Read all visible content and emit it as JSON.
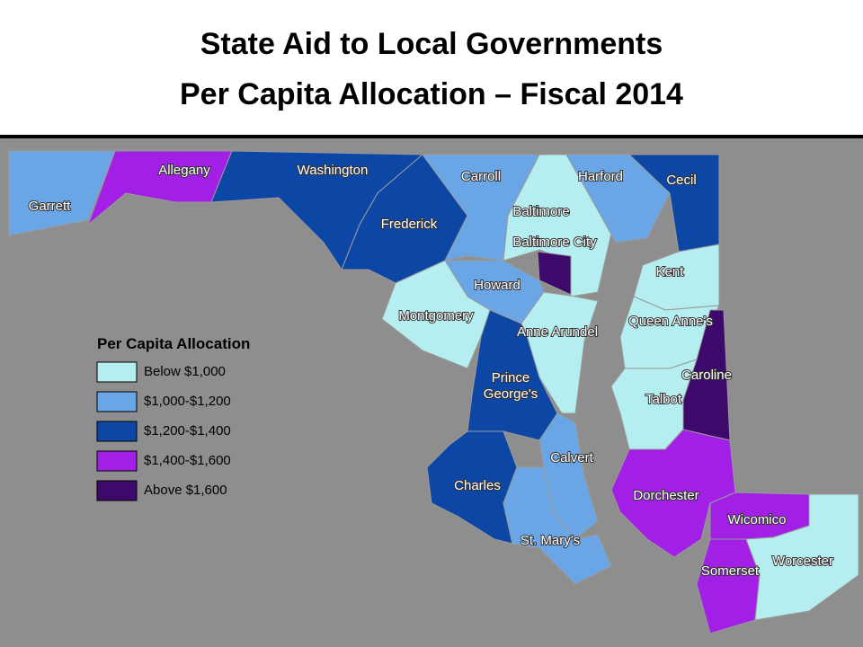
{
  "title": [
    "State Aid to Local Governments",
    "Per Capita Allocation – Fiscal 2014"
  ],
  "legend": {
    "title": "Per Capita Allocation",
    "items": [
      {
        "label": "Below $1,000",
        "color": "#b4eef0"
      },
      {
        "label": "$1,000-$1,200",
        "color": "#6aa6e6"
      },
      {
        "label": "$1,200-$1,400",
        "color": "#0d47a6"
      },
      {
        "label": "$1,400-$1,600",
        "color": "#a21fe6"
      },
      {
        "label": "Above $1,600",
        "color": "#3d0a6b"
      }
    ]
  },
  "counties": [
    {
      "name": "Garrett",
      "color": "#6aa6e6"
    },
    {
      "name": "Allegany",
      "color": "#a21fe6"
    },
    {
      "name": "Washington",
      "color": "#0d47a6"
    },
    {
      "name": "Frederick",
      "color": "#0d47a6"
    },
    {
      "name": "Carroll",
      "color": "#6aa6e6"
    },
    {
      "name": "Baltimore",
      "color": "#b4eef0"
    },
    {
      "name": "Baltimore City",
      "color": "#3d0a6b"
    },
    {
      "name": "Harford",
      "color": "#6aa6e6"
    },
    {
      "name": "Cecil",
      "color": "#0d47a6"
    },
    {
      "name": "Howard",
      "color": "#6aa6e6"
    },
    {
      "name": "Montgomery",
      "color": "#b4eef0"
    },
    {
      "name": "Anne Arundel",
      "color": "#b4eef0"
    },
    {
      "name": "Prince George's",
      "color": "#0d47a6"
    },
    {
      "name": "Charles",
      "color": "#0d47a6"
    },
    {
      "name": "Calvert",
      "color": "#6aa6e6"
    },
    {
      "name": "St. Mary's",
      "color": "#6aa6e6"
    },
    {
      "name": "Kent",
      "color": "#b4eef0"
    },
    {
      "name": "Queen Anne's",
      "color": "#b4eef0"
    },
    {
      "name": "Caroline",
      "color": "#3d0a6b"
    },
    {
      "name": "Talbot",
      "color": "#b4eef0"
    },
    {
      "name": "Dorchester",
      "color": "#a21fe6"
    },
    {
      "name": "Wicomico",
      "color": "#a21fe6"
    },
    {
      "name": "Somerset",
      "color": "#a21fe6"
    },
    {
      "name": "Worcester",
      "color": "#b4eef0"
    }
  ]
}
